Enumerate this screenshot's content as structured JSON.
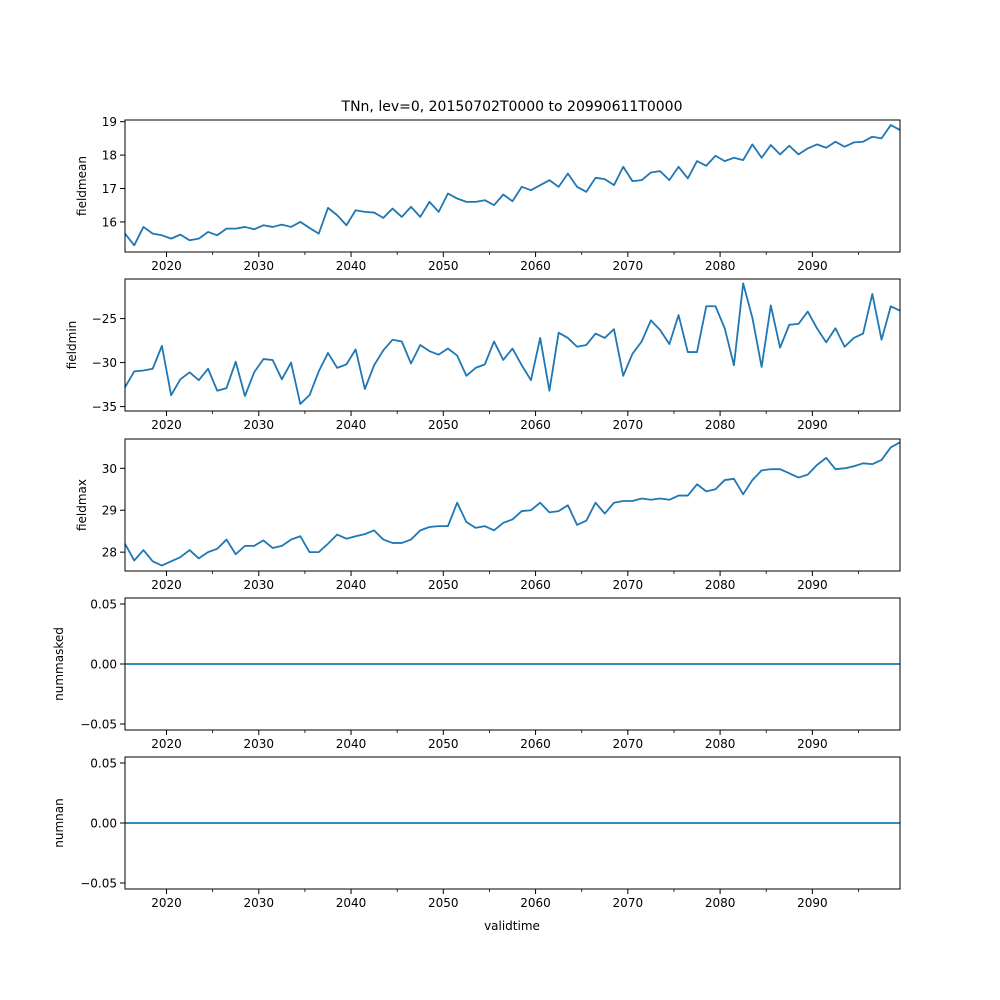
{
  "title": "TNn, lev=0, 20150702T0000 to 20990611T0000",
  "xlabel": "validtime",
  "line_color": "#1f77b4",
  "x_ticks": [
    2020,
    2030,
    2040,
    2050,
    2060,
    2070,
    2080,
    2090
  ],
  "x_tick_labels": [
    "2020",
    "2030",
    "2040",
    "2050",
    "2060",
    "2070",
    "2080",
    "2090"
  ],
  "chart_data": [
    {
      "type": "line",
      "ylabel": "fieldmean",
      "xlim": [
        2015.5,
        2099.5
      ],
      "ylim": [
        15.1,
        19.05
      ],
      "y_ticks": [
        16,
        17,
        18,
        19
      ],
      "y_tick_labels": [
        "16",
        "17",
        "18",
        "19"
      ],
      "x": [
        2015.5,
        2016.5,
        2017.5,
        2018.5,
        2019.5,
        2020.5,
        2021.5,
        2022.5,
        2023.5,
        2024.5,
        2025.5,
        2026.5,
        2027.5,
        2028.5,
        2029.5,
        2030.5,
        2031.5,
        2032.5,
        2033.5,
        2034.5,
        2035.5,
        2036.5,
        2037.5,
        2038.5,
        2039.5,
        2040.5,
        2041.5,
        2042.5,
        2043.5,
        2044.5,
        2045.5,
        2046.5,
        2047.5,
        2048.5,
        2049.5,
        2050.5,
        2051.5,
        2052.5,
        2053.5,
        2054.5,
        2055.5,
        2056.5,
        2057.5,
        2058.5,
        2059.5,
        2060.5,
        2061.5,
        2062.5,
        2063.5,
        2064.5,
        2065.5,
        2066.5,
        2067.5,
        2068.5,
        2069.5,
        2070.5,
        2071.5,
        2072.5,
        2073.5,
        2074.5,
        2075.5,
        2076.5,
        2077.5,
        2078.5,
        2079.5,
        2080.5,
        2081.5,
        2082.5,
        2083.5,
        2084.5,
        2085.5,
        2086.5,
        2087.5,
        2088.5,
        2089.5,
        2090.5,
        2091.5,
        2092.5,
        2093.5,
        2094.5,
        2095.5,
        2096.5,
        2097.5,
        2098.5,
        2099.5
      ],
      "values": [
        15.65,
        15.3,
        15.85,
        15.65,
        15.6,
        15.5,
        15.62,
        15.45,
        15.5,
        15.7,
        15.6,
        15.8,
        15.8,
        15.85,
        15.78,
        15.9,
        15.85,
        15.92,
        15.85,
        16.0,
        15.82,
        15.65,
        16.42,
        16.2,
        15.9,
        16.35,
        16.3,
        16.28,
        16.12,
        16.4,
        16.15,
        16.45,
        16.15,
        16.6,
        16.3,
        16.85,
        16.7,
        16.6,
        16.6,
        16.65,
        16.5,
        16.82,
        16.62,
        17.05,
        16.95,
        17.1,
        17.25,
        17.05,
        17.45,
        17.05,
        16.9,
        17.32,
        17.28,
        17.1,
        17.65,
        17.22,
        17.25,
        17.48,
        17.52,
        17.25,
        17.65,
        17.3,
        17.82,
        17.68,
        17.98,
        17.82,
        17.92,
        17.85,
        18.32,
        17.92,
        18.3,
        18.02,
        18.28,
        18.02,
        18.2,
        18.32,
        18.22,
        18.4,
        18.25,
        18.38,
        18.4,
        18.55,
        18.5,
        18.9,
        18.75
      ]
    },
    {
      "type": "line",
      "ylabel": "fieldmin",
      "xlim": [
        2015.5,
        2099.5
      ],
      "ylim": [
        -35.5,
        -20.5
      ],
      "y_ticks": [
        -35,
        -30,
        -25
      ],
      "y_tick_labels": [
        "−35",
        "−30",
        "−25"
      ],
      "x": [
        2015.5,
        2016.5,
        2017.5,
        2018.5,
        2019.5,
        2020.5,
        2021.5,
        2022.5,
        2023.5,
        2024.5,
        2025.5,
        2026.5,
        2027.5,
        2028.5,
        2029.5,
        2030.5,
        2031.5,
        2032.5,
        2033.5,
        2034.5,
        2035.5,
        2036.5,
        2037.5,
        2038.5,
        2039.5,
        2040.5,
        2041.5,
        2042.5,
        2043.5,
        2044.5,
        2045.5,
        2046.5,
        2047.5,
        2048.5,
        2049.5,
        2050.5,
        2051.5,
        2052.5,
        2053.5,
        2054.5,
        2055.5,
        2056.5,
        2057.5,
        2058.5,
        2059.5,
        2060.5,
        2061.5,
        2062.5,
        2063.5,
        2064.5,
        2065.5,
        2066.5,
        2067.5,
        2068.5,
        2069.5,
        2070.5,
        2071.5,
        2072.5,
        2073.5,
        2074.5,
        2075.5,
        2076.5,
        2077.5,
        2078.5,
        2079.5,
        2080.5,
        2081.5,
        2082.5,
        2083.5,
        2084.5,
        2085.5,
        2086.5,
        2087.5,
        2088.5,
        2089.5,
        2090.5,
        2091.5,
        2092.5,
        2093.5,
        2094.5,
        2095.5,
        2096.5,
        2097.5,
        2098.5,
        2099.5
      ],
      "values": [
        -32.8,
        -31.0,
        -30.9,
        -30.7,
        -28.1,
        -33.7,
        -31.9,
        -31.1,
        -32.0,
        -30.7,
        -33.2,
        -32.9,
        -29.9,
        -33.8,
        -31.1,
        -29.6,
        -29.7,
        -31.9,
        -30.0,
        -34.7,
        -33.7,
        -31.0,
        -28.9,
        -30.6,
        -30.2,
        -28.5,
        -33.0,
        -30.3,
        -28.6,
        -27.4,
        -27.6,
        -30.1,
        -28.0,
        -28.7,
        -29.1,
        -28.4,
        -29.2,
        -31.5,
        -30.6,
        -30.2,
        -27.6,
        -29.7,
        -28.4,
        -30.3,
        -32.0,
        -27.2,
        -33.2,
        -26.6,
        -27.2,
        -28.2,
        -28.0,
        -26.7,
        -27.2,
        -26.2,
        -31.5,
        -29.0,
        -27.6,
        -25.2,
        -26.3,
        -27.9,
        -24.6,
        -28.8,
        -28.8,
        -23.6,
        -23.6,
        -26.1,
        -30.3,
        -21.0,
        -24.9,
        -30.5,
        -23.5,
        -28.3,
        -25.7,
        -25.6,
        -24.2,
        -26.1,
        -27.7,
        -26.1,
        -28.2,
        -27.2,
        -26.7,
        -22.2,
        -27.4,
        -23.6,
        -24.1
      ]
    },
    {
      "type": "line",
      "ylabel": "fieldmax",
      "xlim": [
        2015.5,
        2099.5
      ],
      "ylim": [
        27.55,
        30.7
      ],
      "y_ticks": [
        28,
        29,
        30
      ],
      "y_tick_labels": [
        "28",
        "29",
        "30"
      ],
      "x": [
        2015.5,
        2016.5,
        2017.5,
        2018.5,
        2019.5,
        2020.5,
        2021.5,
        2022.5,
        2023.5,
        2024.5,
        2025.5,
        2026.5,
        2027.5,
        2028.5,
        2029.5,
        2030.5,
        2031.5,
        2032.5,
        2033.5,
        2034.5,
        2035.5,
        2036.5,
        2037.5,
        2038.5,
        2039.5,
        2040.5,
        2041.5,
        2042.5,
        2043.5,
        2044.5,
        2045.5,
        2046.5,
        2047.5,
        2048.5,
        2049.5,
        2050.5,
        2051.5,
        2052.5,
        2053.5,
        2054.5,
        2055.5,
        2056.5,
        2057.5,
        2058.5,
        2059.5,
        2060.5,
        2061.5,
        2062.5,
        2063.5,
        2064.5,
        2065.5,
        2066.5,
        2067.5,
        2068.5,
        2069.5,
        2070.5,
        2071.5,
        2072.5,
        2073.5,
        2074.5,
        2075.5,
        2076.5,
        2077.5,
        2078.5,
        2079.5,
        2080.5,
        2081.5,
        2082.5,
        2083.5,
        2084.5,
        2085.5,
        2086.5,
        2087.5,
        2088.5,
        2089.5,
        2090.5,
        2091.5,
        2092.5,
        2093.5,
        2094.5,
        2095.5,
        2096.5,
        2097.5,
        2098.5,
        2099.5
      ],
      "values": [
        28.2,
        27.8,
        28.05,
        27.78,
        27.68,
        27.78,
        27.88,
        28.05,
        27.85,
        28.0,
        28.08,
        28.3,
        27.95,
        28.15,
        28.15,
        28.28,
        28.1,
        28.15,
        28.3,
        28.38,
        28.0,
        28.0,
        28.2,
        28.42,
        28.32,
        28.38,
        28.43,
        28.52,
        28.3,
        28.22,
        28.22,
        28.3,
        28.52,
        28.6,
        28.62,
        28.62,
        29.18,
        28.72,
        28.58,
        28.62,
        28.52,
        28.7,
        28.78,
        28.98,
        29.0,
        29.18,
        28.95,
        28.98,
        29.12,
        28.65,
        28.75,
        29.18,
        28.92,
        29.18,
        29.22,
        29.22,
        29.28,
        29.25,
        29.28,
        29.25,
        29.35,
        29.35,
        29.62,
        29.45,
        29.5,
        29.72,
        29.75,
        29.38,
        29.72,
        29.95,
        29.98,
        29.98,
        29.88,
        29.78,
        29.85,
        30.08,
        30.25,
        29.98,
        30.0,
        30.05,
        30.12,
        30.1,
        30.2,
        30.5,
        30.62
      ]
    },
    {
      "type": "line",
      "ylabel": "nummasked",
      "xlim": [
        2015.5,
        2099.5
      ],
      "ylim": [
        -0.055,
        0.055
      ],
      "y_ticks": [
        -0.05,
        0.0,
        0.05
      ],
      "y_tick_labels": [
        "−0.05",
        "0.00",
        "0.05"
      ],
      "x": [
        2015.5,
        2099.5
      ],
      "values": [
        0,
        0
      ]
    },
    {
      "type": "line",
      "ylabel": "numnan",
      "xlim": [
        2015.5,
        2099.5
      ],
      "ylim": [
        -0.055,
        0.055
      ],
      "y_ticks": [
        -0.05,
        0.0,
        0.05
      ],
      "y_tick_labels": [
        "−0.05",
        "0.00",
        "0.05"
      ],
      "x": [
        2015.5,
        2099.5
      ],
      "values": [
        0,
        0
      ]
    }
  ]
}
